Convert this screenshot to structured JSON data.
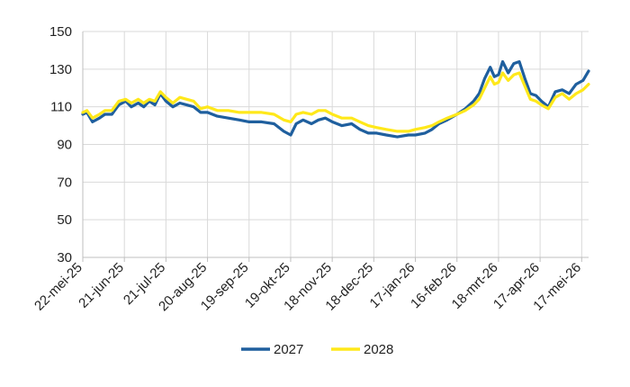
{
  "chart_data": {
    "type": "line",
    "title": "",
    "xlabel": "",
    "ylabel": "",
    "ylim": [
      30,
      150
    ],
    "yticks": [
      30,
      50,
      70,
      90,
      110,
      130,
      150
    ],
    "xlim": [
      "2025-05-22",
      "2026-05-22"
    ],
    "xticks": [
      {
        "date": "2025-05-22",
        "label": "22-mei-25"
      },
      {
        "date": "2025-06-21",
        "label": "21-jun-25"
      },
      {
        "date": "2025-07-21",
        "label": "21-jul-25"
      },
      {
        "date": "2025-08-20",
        "label": "20-aug-25"
      },
      {
        "date": "2025-09-19",
        "label": "19-sep-25"
      },
      {
        "date": "2025-10-19",
        "label": "19-okt-25"
      },
      {
        "date": "2025-11-18",
        "label": "18-nov-25"
      },
      {
        "date": "2025-12-18",
        "label": "18-dec-25"
      },
      {
        "date": "2026-01-17",
        "label": "17-jan-26"
      },
      {
        "date": "2026-02-16",
        "label": "16-feb-26"
      },
      {
        "date": "2026-03-18",
        "label": "18-mrt-26"
      },
      {
        "date": "2026-04-17",
        "label": "17-apr-26"
      },
      {
        "date": "2026-05-17",
        "label": "17-mei-26"
      }
    ],
    "grid": {
      "horizontal": true,
      "vertical": true
    },
    "legend_position": "bottom",
    "colors": {
      "2027": "#1f5f9e",
      "2028": "#ffe81a",
      "grid": "#d9d9d9",
      "axis": "#bfbfbf"
    },
    "series": [
      {
        "name": "2027",
        "points": [
          [
            "2025-05-22",
            106
          ],
          [
            "2025-05-25",
            107
          ],
          [
            "2025-05-29",
            102
          ],
          [
            "2025-06-03",
            104
          ],
          [
            "2025-06-07",
            106
          ],
          [
            "2025-06-12",
            106
          ],
          [
            "2025-06-17",
            111
          ],
          [
            "2025-06-22",
            113
          ],
          [
            "2025-06-26",
            110
          ],
          [
            "2025-07-01",
            112
          ],
          [
            "2025-07-05",
            110
          ],
          [
            "2025-07-09",
            113
          ],
          [
            "2025-07-13",
            111
          ],
          [
            "2025-07-17",
            117
          ],
          [
            "2025-07-21",
            113
          ],
          [
            "2025-07-26",
            110
          ],
          [
            "2025-07-31",
            112
          ],
          [
            "2025-08-05",
            111
          ],
          [
            "2025-08-10",
            110
          ],
          [
            "2025-08-15",
            107
          ],
          [
            "2025-08-20",
            107
          ],
          [
            "2025-08-27",
            105
          ],
          [
            "2025-09-04",
            104
          ],
          [
            "2025-09-12",
            103
          ],
          [
            "2025-09-19",
            102
          ],
          [
            "2025-09-28",
            102
          ],
          [
            "2025-10-07",
            101
          ],
          [
            "2025-10-14",
            97
          ],
          [
            "2025-10-19",
            95
          ],
          [
            "2025-10-23",
            101
          ],
          [
            "2025-10-28",
            103
          ],
          [
            "2025-11-03",
            101
          ],
          [
            "2025-11-08",
            103
          ],
          [
            "2025-11-13",
            104
          ],
          [
            "2025-11-18",
            102
          ],
          [
            "2025-11-25",
            100
          ],
          [
            "2025-12-02",
            101
          ],
          [
            "2025-12-08",
            98
          ],
          [
            "2025-12-14",
            96
          ],
          [
            "2025-12-20",
            96
          ],
          [
            "2025-12-27",
            95
          ],
          [
            "2026-01-04",
            94
          ],
          [
            "2026-01-12",
            95
          ],
          [
            "2026-01-17",
            95
          ],
          [
            "2026-01-24",
            96
          ],
          [
            "2026-01-29",
            98
          ],
          [
            "2026-02-03",
            101
          ],
          [
            "2026-02-09",
            103
          ],
          [
            "2026-02-16",
            106
          ],
          [
            "2026-02-22",
            109
          ],
          [
            "2026-02-28",
            113
          ],
          [
            "2026-03-04",
            117
          ],
          [
            "2026-03-08",
            125
          ],
          [
            "2026-03-12",
            131
          ],
          [
            "2026-03-15",
            126
          ],
          [
            "2026-03-18",
            127
          ],
          [
            "2026-03-21",
            134
          ],
          [
            "2026-03-25",
            128
          ],
          [
            "2026-03-29",
            133
          ],
          [
            "2026-04-02",
            134
          ],
          [
            "2026-04-06",
            125
          ],
          [
            "2026-04-10",
            117
          ],
          [
            "2026-04-14",
            116
          ],
          [
            "2026-04-18",
            113
          ],
          [
            "2026-04-23",
            110
          ],
          [
            "2026-04-28",
            118
          ],
          [
            "2026-05-03",
            119
          ],
          [
            "2026-05-08",
            117
          ],
          [
            "2026-05-13",
            122
          ],
          [
            "2026-05-18",
            124
          ],
          [
            "2026-05-22",
            129
          ]
        ]
      },
      {
        "name": "2028",
        "points": [
          [
            "2025-05-22",
            107
          ],
          [
            "2025-05-25",
            108
          ],
          [
            "2025-05-29",
            104
          ],
          [
            "2025-06-03",
            106
          ],
          [
            "2025-06-07",
            108
          ],
          [
            "2025-06-12",
            108
          ],
          [
            "2025-06-17",
            113
          ],
          [
            "2025-06-22",
            114
          ],
          [
            "2025-06-26",
            112
          ],
          [
            "2025-07-01",
            114
          ],
          [
            "2025-07-05",
            112
          ],
          [
            "2025-07-09",
            114
          ],
          [
            "2025-07-13",
            113
          ],
          [
            "2025-07-17",
            118
          ],
          [
            "2025-07-21",
            115
          ],
          [
            "2025-07-26",
            112
          ],
          [
            "2025-07-31",
            115
          ],
          [
            "2025-08-05",
            114
          ],
          [
            "2025-08-10",
            113
          ],
          [
            "2025-08-15",
            109
          ],
          [
            "2025-08-20",
            110
          ],
          [
            "2025-08-27",
            108
          ],
          [
            "2025-09-04",
            108
          ],
          [
            "2025-09-12",
            107
          ],
          [
            "2025-09-19",
            107
          ],
          [
            "2025-09-28",
            107
          ],
          [
            "2025-10-07",
            106
          ],
          [
            "2025-10-14",
            103
          ],
          [
            "2025-10-19",
            102
          ],
          [
            "2025-10-23",
            106
          ],
          [
            "2025-10-28",
            107
          ],
          [
            "2025-11-03",
            106
          ],
          [
            "2025-11-08",
            108
          ],
          [
            "2025-11-13",
            108
          ],
          [
            "2025-11-18",
            106
          ],
          [
            "2025-11-25",
            104
          ],
          [
            "2025-12-02",
            104
          ],
          [
            "2025-12-08",
            102
          ],
          [
            "2025-12-14",
            100
          ],
          [
            "2025-12-20",
            99
          ],
          [
            "2025-12-27",
            98
          ],
          [
            "2026-01-04",
            97
          ],
          [
            "2026-01-12",
            97
          ],
          [
            "2026-01-17",
            98
          ],
          [
            "2026-01-24",
            99
          ],
          [
            "2026-01-29",
            100
          ],
          [
            "2026-02-03",
            102
          ],
          [
            "2026-02-09",
            104
          ],
          [
            "2026-02-16",
            106
          ],
          [
            "2026-02-22",
            108
          ],
          [
            "2026-02-28",
            111
          ],
          [
            "2026-03-04",
            114
          ],
          [
            "2026-03-08",
            120
          ],
          [
            "2026-03-12",
            126
          ],
          [
            "2026-03-15",
            122
          ],
          [
            "2026-03-18",
            123
          ],
          [
            "2026-03-21",
            128
          ],
          [
            "2026-03-25",
            124
          ],
          [
            "2026-03-29",
            127
          ],
          [
            "2026-04-02",
            128
          ],
          [
            "2026-04-06",
            121
          ],
          [
            "2026-04-10",
            114
          ],
          [
            "2026-04-14",
            113
          ],
          [
            "2026-04-18",
            111
          ],
          [
            "2026-04-23",
            109
          ],
          [
            "2026-04-28",
            115
          ],
          [
            "2026-05-03",
            117
          ],
          [
            "2026-05-08",
            114
          ],
          [
            "2026-05-13",
            117
          ],
          [
            "2026-05-18",
            119
          ],
          [
            "2026-05-22",
            122
          ]
        ]
      }
    ]
  }
}
